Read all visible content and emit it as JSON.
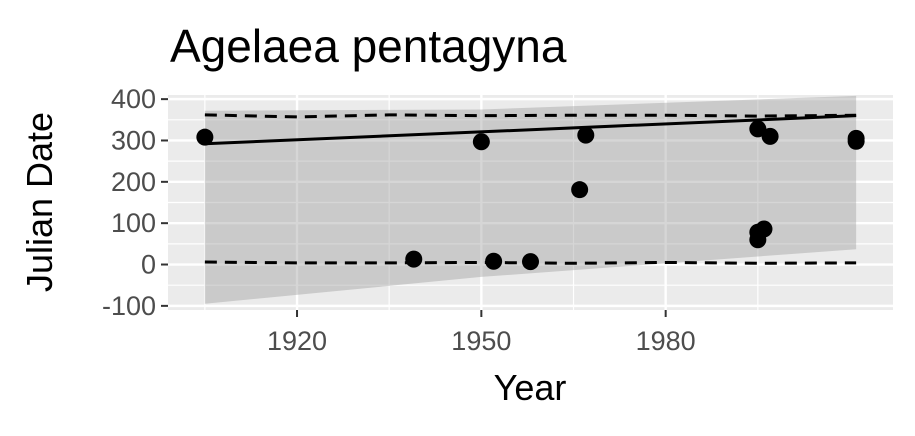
{
  "chart_data": {
    "type": "scatter",
    "title": "Agelaea pentagyna",
    "xlabel": "Year",
    "ylabel": "Julian Date",
    "xlim": [
      1899,
      2017
    ],
    "ylim": [
      -110,
      410
    ],
    "xticks": [
      1920,
      1950,
      1980
    ],
    "yticks": [
      -100,
      0,
      100,
      200,
      300,
      400
    ],
    "x_tick_labels": [
      "1920",
      "1950",
      "1980"
    ],
    "y_tick_labels": [
      "-100",
      "0",
      "100",
      "200",
      "300",
      "400"
    ],
    "grid": true,
    "panel_background": "#ebebeb",
    "grid_color": "#ffffff",
    "point_color": "#000000",
    "series": [
      {
        "type": "scatter",
        "x": [
          1905,
          1939,
          1950,
          1952,
          1958,
          1966,
          1967,
          1995,
          1995,
          1995,
          1996,
          1997,
          2011,
          2011
        ],
        "y": [
          308,
          13,
          297,
          8,
          7,
          181,
          313,
          328,
          60,
          78,
          86,
          310,
          298,
          305
        ]
      },
      {
        "type": "line",
        "style": "solid",
        "x": [
          1905,
          2011
        ],
        "y": [
          292,
          360
        ]
      },
      {
        "type": "line",
        "style": "dashed",
        "x": [
          1905,
          1920,
          1935,
          1950,
          1965,
          1980,
          1995,
          2011
        ],
        "y": [
          362,
          357,
          362,
          360,
          361,
          361,
          359,
          361
        ]
      },
      {
        "type": "line",
        "style": "dashed",
        "x": [
          1905,
          1920,
          1935,
          1950,
          1965,
          1980,
          1995,
          2011
        ],
        "y": [
          6,
          4,
          4,
          5,
          3,
          5,
          3,
          4
        ]
      },
      {
        "type": "area",
        "name": "confidence band",
        "color": "#999999",
        "x": [
          1905,
          1950,
          2011
        ],
        "upper": [
          372,
          375,
          408
        ],
        "lower": [
          -95,
          -30,
          37
        ]
      }
    ]
  }
}
